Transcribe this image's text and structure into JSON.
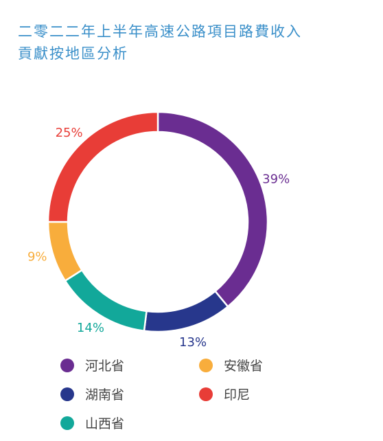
{
  "header": {
    "title_line1": "二零二二年上半年高速公路項目路費收入",
    "title_line2": "貢獻按地區分析"
  },
  "chart_data": {
    "type": "pie",
    "variant": "donut",
    "title": "二零二二年上半年高速公路項目路費收入貢獻按地區分析",
    "slices": [
      {
        "label": "河北省",
        "value": 39,
        "display": "39%",
        "color": "#6a2d91"
      },
      {
        "label": "湖南省",
        "value": 13,
        "display": "13%",
        "color": "#27378c"
      },
      {
        "label": "山西省",
        "value": 14,
        "display": "14%",
        "color": "#12a89a"
      },
      {
        "label": "安徽省",
        "value": 9,
        "display": "9%",
        "color": "#f8ad3c"
      },
      {
        "label": "印尼",
        "value": 25,
        "display": "25%",
        "color": "#e83d37"
      }
    ],
    "legend": {
      "placement": "bottom",
      "items": [
        {
          "label": "河北省",
          "color": "#6a2d91"
        },
        {
          "label": "安徽省",
          "color": "#f8ad3c"
        },
        {
          "label": "湖南省",
          "color": "#27378c"
        },
        {
          "label": "印尼",
          "color": "#e83d37"
        },
        {
          "label": "山西省",
          "color": "#12a89a"
        }
      ]
    }
  }
}
